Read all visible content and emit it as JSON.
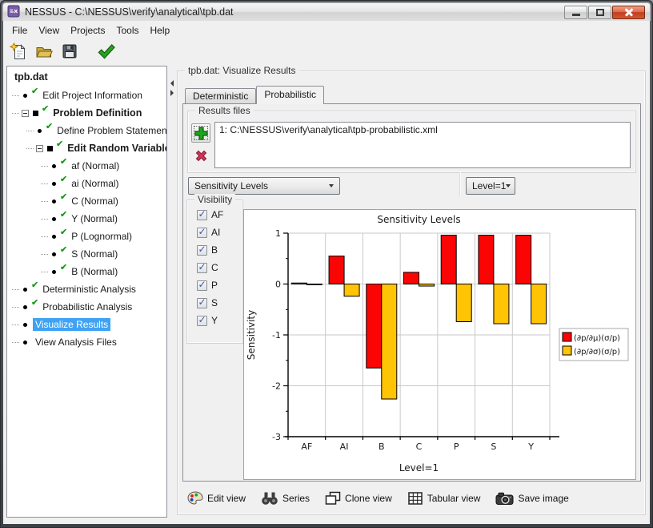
{
  "window": {
    "title": "NESSUS - C:\\NESSUS\\verify\\analytical\\tpb.dat",
    "app_icon": "nessus-logo-icon",
    "buttons": [
      "minimize",
      "maximize",
      "close"
    ]
  },
  "menubar": [
    "File",
    "View",
    "Projects",
    "Tools",
    "Help"
  ],
  "toolbar": [
    {
      "icon": "new-file-icon"
    },
    {
      "icon": "open-folder-icon"
    },
    {
      "icon": "save-icon"
    },
    {
      "icon": "validate-check-icon"
    }
  ],
  "tree": {
    "root": {
      "label": "tpb.dat"
    },
    "items": [
      {
        "label": "Edit Project Information",
        "level": 1,
        "bullet": "dot",
        "check": true
      },
      {
        "label": "Problem Definition",
        "level": 1,
        "bullet": "square",
        "bold": true,
        "check": true,
        "expanded": true
      },
      {
        "label": "Define Problem Statement",
        "level": 2,
        "bullet": "dot",
        "check": true
      },
      {
        "label": "Edit Random Variables",
        "level": 2,
        "bullet": "square",
        "bold": true,
        "check": true,
        "expanded": true
      },
      {
        "label": "af (Normal)",
        "level": 3,
        "bullet": "dot",
        "check": true
      },
      {
        "label": "ai (Normal)",
        "level": 3,
        "bullet": "dot",
        "check": true
      },
      {
        "label": "C (Normal)",
        "level": 3,
        "bullet": "dot",
        "check": true
      },
      {
        "label": "Y (Normal)",
        "level": 3,
        "bullet": "dot",
        "check": true
      },
      {
        "label": "P (Lognormal)",
        "level": 3,
        "bullet": "dot",
        "check": true
      },
      {
        "label": "S (Normal)",
        "level": 3,
        "bullet": "dot",
        "check": true
      },
      {
        "label": "B (Normal)",
        "level": 3,
        "bullet": "dot",
        "check": true
      },
      {
        "label": "Deterministic Analysis",
        "level": 1,
        "bullet": "dot",
        "check": true
      },
      {
        "label": "Probabilistic Analysis",
        "level": 1,
        "bullet": "dot",
        "check": true
      },
      {
        "label": "Visualize Results",
        "level": 1,
        "bullet": "dot",
        "check": false,
        "selected": true
      },
      {
        "label": "View Analysis Files",
        "level": 1,
        "bullet": "dot",
        "check": false
      }
    ]
  },
  "main": {
    "group_title": "tpb.dat: Visualize Results",
    "tabs": [
      {
        "label": "Deterministic",
        "active": false
      },
      {
        "label": "Probabilistic",
        "active": true
      }
    ],
    "results_files": {
      "group_title": "Results files",
      "add_icon": "add-plus-icon",
      "remove_icon": "remove-x-icon",
      "items": [
        "1: C:\\NESSUS\\verify\\analytical\\tpb-probabilistic.xml"
      ]
    },
    "view_type_select": "Sensitivity Levels",
    "level_select": "Level=1",
    "visibility": {
      "group_title": "Visibility",
      "items": [
        {
          "label": "AF",
          "checked": true
        },
        {
          "label": "AI",
          "checked": true
        },
        {
          "label": "B",
          "checked": true
        },
        {
          "label": "C",
          "checked": true
        },
        {
          "label": "P",
          "checked": true
        },
        {
          "label": "S",
          "checked": true
        },
        {
          "label": "Y",
          "checked": true
        }
      ]
    },
    "bottom_toolbar": [
      {
        "label": "Edit view",
        "icon": "palette-icon"
      },
      {
        "label": "Series",
        "icon": "binoculars-icon"
      },
      {
        "label": "Clone view",
        "icon": "clone-view-icon"
      },
      {
        "label": "Tabular view",
        "icon": "table-grid-icon"
      },
      {
        "label": "Save image",
        "icon": "camera-icon"
      }
    ]
  },
  "chart_data": {
    "type": "bar",
    "title": "Sensitivity Levels",
    "categories": [
      "AF",
      "AI",
      "B",
      "C",
      "P",
      "S",
      "Y"
    ],
    "series": [
      {
        "name": "(∂p/∂μ)(σ/p)",
        "color": "#fb0404",
        "values": [
          0.02,
          0.55,
          -1.65,
          0.23,
          0.96,
          0.96,
          0.96
        ]
      },
      {
        "name": "(∂p/∂σ)(σ/p)",
        "color": "#ffc404",
        "values": [
          0.0,
          -0.24,
          -2.26,
          -0.04,
          -0.74,
          -0.78,
          -0.78
        ]
      }
    ],
    "xlabel": "Level=1",
    "ylabel": "Sensitivity",
    "ylim": [
      -3,
      1
    ],
    "yticks": [
      1,
      0,
      -1,
      -2,
      -3
    ],
    "grid": true,
    "legend_position": "right",
    "bar_outline": "#000000",
    "grid_color": "#c9c9c9"
  }
}
